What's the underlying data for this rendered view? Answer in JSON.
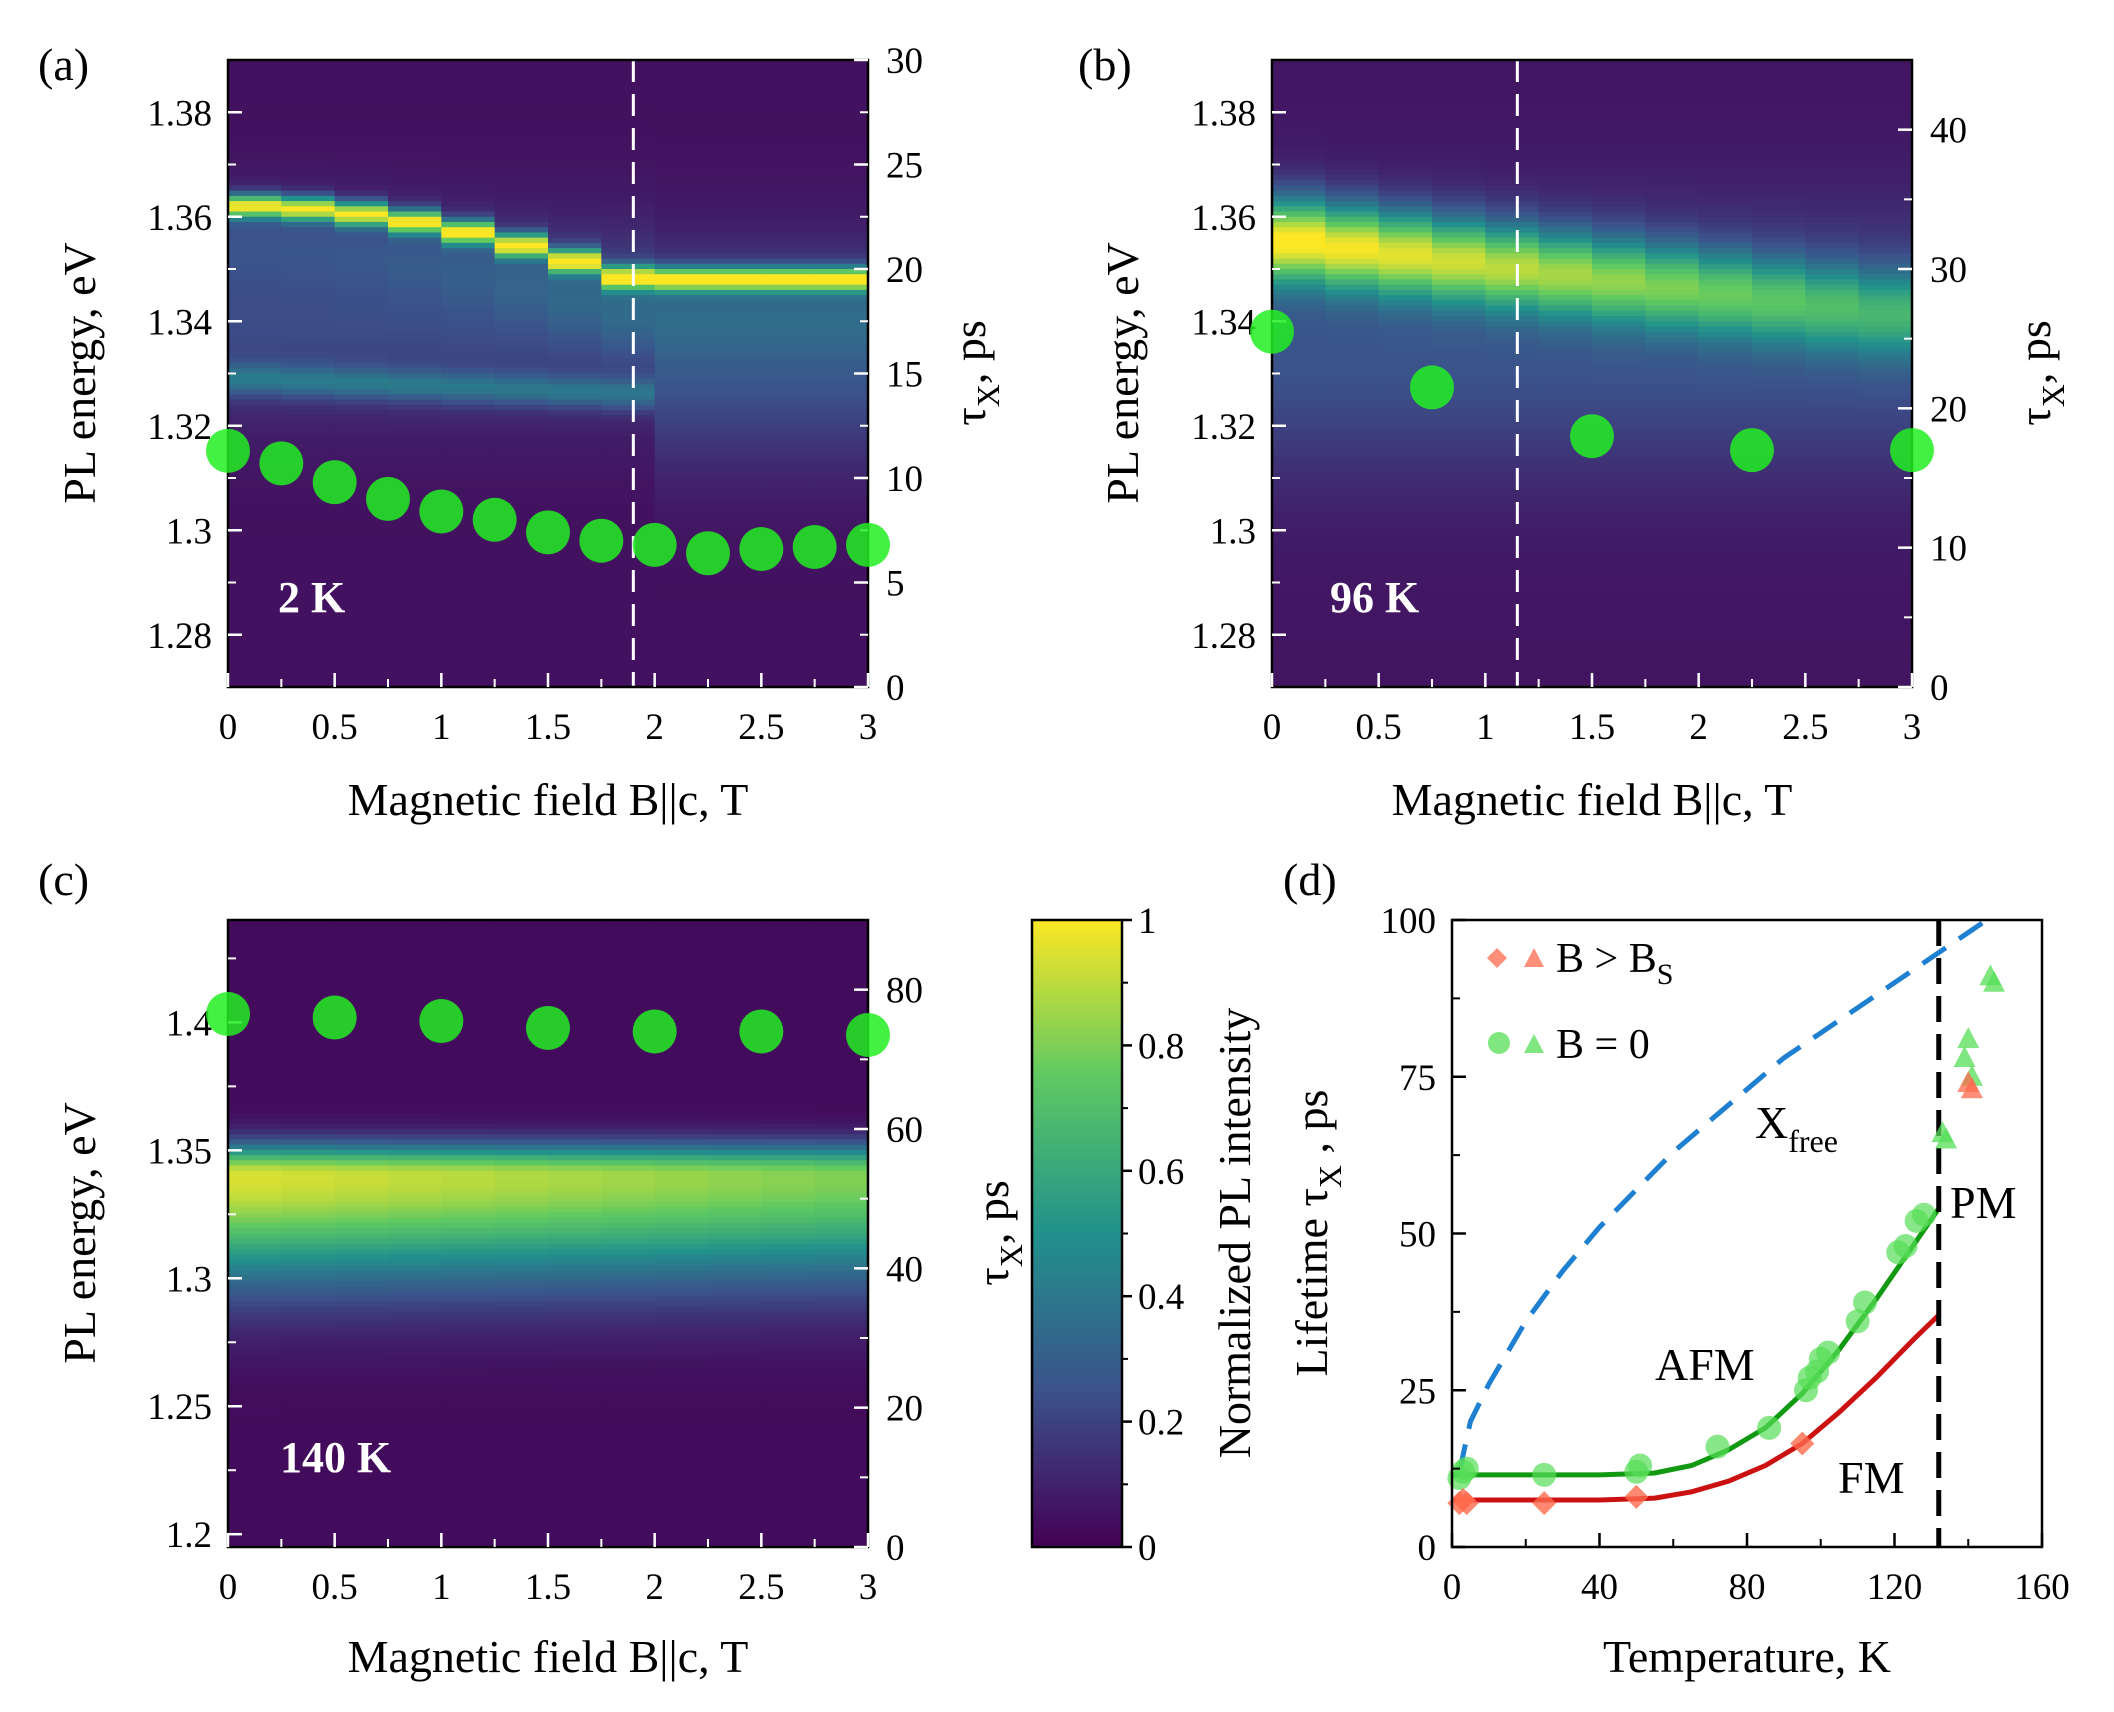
{
  "figure": {
    "panel_labels": [
      "(a)",
      "(b)",
      "(c)",
      "(d)"
    ],
    "colorbar": {
      "label": "Normalized PL intensity",
      "ticks": [
        "0",
        "0.2",
        "0.4",
        "0.6",
        "0.8",
        "1"
      ],
      "colors": [
        "#440154",
        "#3b528b",
        "#21918c",
        "#5ec962",
        "#fde725"
      ]
    }
  },
  "chart_data": [
    {
      "id": "a",
      "type": "heatmap",
      "panel_label": "(a)",
      "temperature_label": "2 K",
      "xlabel": "Magnetic field B||c, T",
      "ylabel": "PL energy, eV",
      "y2label": "τX, ps",
      "y2label_main": "τ",
      "y2label_sub": "X",
      "y2label_tail": ", ps",
      "xlim": [
        0,
        3
      ],
      "ylim": [
        1.27,
        1.39
      ],
      "y2lim": [
        0,
        30
      ],
      "xticks": [
        "0",
        "0.5",
        "1",
        "1.5",
        "2",
        "2.5",
        "3"
      ],
      "yticks": [
        "1.28",
        "1.3",
        "1.32",
        "1.34",
        "1.36",
        "1.38"
      ],
      "y2ticks": [
        "0",
        "5",
        "10",
        "15",
        "20",
        "25",
        "30"
      ],
      "dashed_line_B": 1.9,
      "peak_lines": [
        {
          "B": [
            0,
            0.25,
            0.5,
            0.75,
            1.0,
            1.25,
            1.5,
            1.75,
            1.9,
            3.0
          ],
          "E": [
            1.362,
            1.362,
            1.361,
            1.36,
            1.358,
            1.356,
            1.353,
            1.35,
            1.348,
            1.348
          ],
          "intensity": 0.85
        },
        {
          "B": [
            0,
            1.9
          ],
          "E": [
            1.329,
            1.326
          ],
          "intensity": 0.45
        }
      ],
      "lifetime_series": {
        "name": "τX",
        "color": "#22ee22",
        "B": [
          0,
          0.25,
          0.5,
          0.75,
          1.0,
          1.25,
          1.5,
          1.75,
          2.0,
          2.25,
          2.5,
          2.75,
          3.0
        ],
        "tau": [
          11.3,
          10.7,
          9.8,
          9.0,
          8.4,
          8.0,
          7.4,
          7.0,
          6.8,
          6.4,
          6.6,
          6.7,
          6.8
        ]
      }
    },
    {
      "id": "b",
      "type": "heatmap",
      "panel_label": "(b)",
      "temperature_label": "96 K",
      "xlabel": "Magnetic field B||c, T",
      "ylabel": "PL energy, eV",
      "y2label": "τX, ps",
      "y2label_main": "τ",
      "y2label_sub": "X",
      "y2label_tail": ", ps",
      "xlim": [
        0,
        3
      ],
      "ylim": [
        1.27,
        1.39
      ],
      "y2lim": [
        0,
        45
      ],
      "xticks": [
        "0",
        "0.5",
        "1",
        "1.5",
        "2",
        "2.5",
        "3"
      ],
      "yticks": [
        "1.28",
        "1.3",
        "1.32",
        "1.34",
        "1.36",
        "1.38"
      ],
      "y2ticks": [
        "0",
        "10",
        "20",
        "30",
        "40"
      ],
      "dashed_line_B": 1.15,
      "lifetime_series": {
        "name": "τX",
        "color": "#22ee22",
        "B": [
          0,
          0.75,
          1.5,
          2.25,
          3.0
        ],
        "tau": [
          25.5,
          21.5,
          18.0,
          17.0,
          17.0
        ]
      }
    },
    {
      "id": "c",
      "type": "heatmap",
      "panel_label": "(c)",
      "temperature_label": "140 K",
      "xlabel": "Magnetic field B||c, T",
      "ylabel": "PL energy, eV",
      "y2label": "τX, ps",
      "y2label_main": "τ",
      "y2label_sub": "X",
      "y2label_tail": ", ps",
      "xlim": [
        0,
        3
      ],
      "ylim": [
        1.195,
        1.44
      ],
      "y2lim": [
        0,
        90
      ],
      "xticks": [
        "0",
        "0.5",
        "1",
        "1.5",
        "2",
        "2.5",
        "3"
      ],
      "yticks": [
        "1.2",
        "1.25",
        "1.3",
        "1.35",
        "1.4"
      ],
      "y2ticks": [
        "0",
        "20",
        "40",
        "60",
        "80"
      ],
      "lifetime_series": {
        "name": "τX",
        "color": "#22ee22",
        "B": [
          0,
          0.5,
          1.0,
          1.5,
          2.0,
          2.5,
          3.0
        ],
        "tau": [
          76.5,
          76.0,
          75.5,
          74.5,
          74.0,
          74.0,
          73.5
        ]
      }
    },
    {
      "id": "d",
      "type": "scatter",
      "panel_label": "(d)",
      "xlabel": "Temperature, K",
      "ylabel": "Lifetime τX , ps",
      "ylabel_main": "Lifetime τ",
      "ylabel_sub": "X",
      "ylabel_tail": " , ps",
      "xlim": [
        0,
        160
      ],
      "ylim": [
        0,
        100
      ],
      "xticks": [
        "0",
        "40",
        "80",
        "120",
        "160"
      ],
      "yticks": [
        "0",
        "25",
        "50",
        "75",
        "100"
      ],
      "neel_temperature_line": 132,
      "annotations": {
        "xfree_main": "X",
        "xfree_sub": "free",
        "afm": "AFM",
        "fm": "FM",
        "pm": "PM"
      },
      "legend": {
        "position": "top-left",
        "entries": [
          {
            "label_main": "B > B",
            "label_sub": "S",
            "color": "#ff6a4c"
          },
          {
            "label_main": "B = 0",
            "label_sub": "",
            "color": "#55dd55"
          }
        ]
      },
      "series": [
        {
          "name": "B = 0 (circles)",
          "marker": "circle",
          "color": "#55dd55",
          "T": [
            2,
            3,
            4,
            25,
            50,
            51,
            72,
            86,
            96,
            97,
            99,
            100,
            102,
            110,
            112,
            121,
            123,
            126,
            128
          ],
          "tau": [
            11,
            12,
            12.5,
            11.5,
            12,
            13,
            16,
            19,
            25,
            27,
            28,
            30,
            31,
            36,
            39,
            47,
            48,
            52,
            53
          ]
        },
        {
          "name": "B > Bs (diamonds)",
          "marker": "diamond",
          "color": "#ff6a4c",
          "T": [
            2,
            3,
            4,
            25,
            50,
            95
          ],
          "tau": [
            7,
            7.5,
            7,
            7,
            8,
            16.5
          ]
        },
        {
          "name": "B = 0 (triangles)",
          "marker": "triangle",
          "color": "#55dd55",
          "T": [
            133,
            134,
            139,
            140,
            141,
            146,
            147
          ],
          "tau": [
            66,
            65,
            78,
            81,
            75,
            91,
            90
          ]
        },
        {
          "name": "B > Bs (triangles)",
          "marker": "triangle",
          "color": "#ff6a4c",
          "T": [
            140,
            141
          ],
          "tau": [
            74,
            73
          ]
        }
      ],
      "fit_curves": [
        {
          "name": "AFM fit",
          "color": "#119911",
          "T": [
            0,
            40,
            55,
            65,
            75,
            85,
            95,
            105,
            115,
            125,
            132
          ],
          "tau": [
            11.5,
            11.5,
            11.8,
            13,
            15.5,
            19,
            24.5,
            31.5,
            39.5,
            48,
            54
          ]
        },
        {
          "name": "FM fit",
          "color": "#cc1111",
          "T": [
            0,
            40,
            55,
            65,
            75,
            85,
            95,
            105,
            115,
            125,
            132
          ],
          "tau": [
            7.5,
            7.5,
            7.8,
            8.8,
            10.5,
            13,
            16.5,
            21.5,
            27,
            33,
            37
          ]
        },
        {
          "name": "X free",
          "color": "#1f7fd0",
          "dashed": true,
          "T": [
            2,
            5,
            10,
            20,
            30,
            40,
            50,
            60,
            70,
            80,
            90,
            100,
            110,
            120,
            130,
            140,
            145
          ],
          "tau": [
            12,
            20,
            26,
            36,
            44,
            51,
            57,
            63,
            68,
            73,
            78,
            82,
            86,
            90,
            94,
            98,
            100
          ]
        }
      ]
    }
  ]
}
